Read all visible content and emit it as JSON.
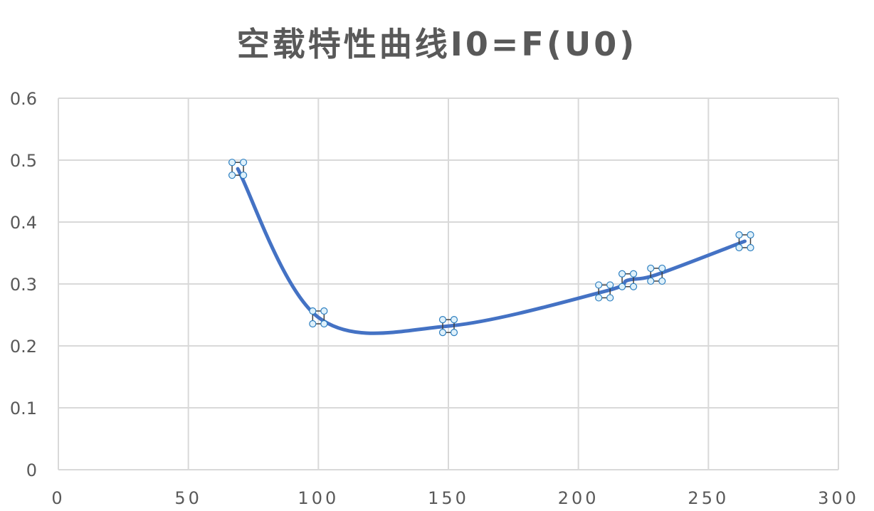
{
  "chart_data": {
    "type": "line",
    "title": "空载特性曲线I0=F(U0)",
    "smooth": true,
    "xlim": [
      0,
      300
    ],
    "ylim": [
      0,
      0.6
    ],
    "x_ticks": [
      "0",
      "50",
      "100",
      "150",
      "200",
      "250",
      "300"
    ],
    "y_ticks": [
      "0",
      "0.1",
      "0.2",
      "0.3",
      "0.4",
      "0.5",
      "0.6"
    ],
    "grid": true,
    "legend": "none",
    "selected": true,
    "series": [
      {
        "color": "#4472c4",
        "points": [
          {
            "x": 69,
            "y": 0.486
          },
          {
            "x": 100,
            "y": 0.246
          },
          {
            "x": 150,
            "y": 0.232
          },
          {
            "x": 210,
            "y": 0.288
          },
          {
            "x": 219,
            "y": 0.306
          },
          {
            "x": 230,
            "y": 0.315
          },
          {
            "x": 264,
            "y": 0.369
          }
        ]
      }
    ]
  }
}
